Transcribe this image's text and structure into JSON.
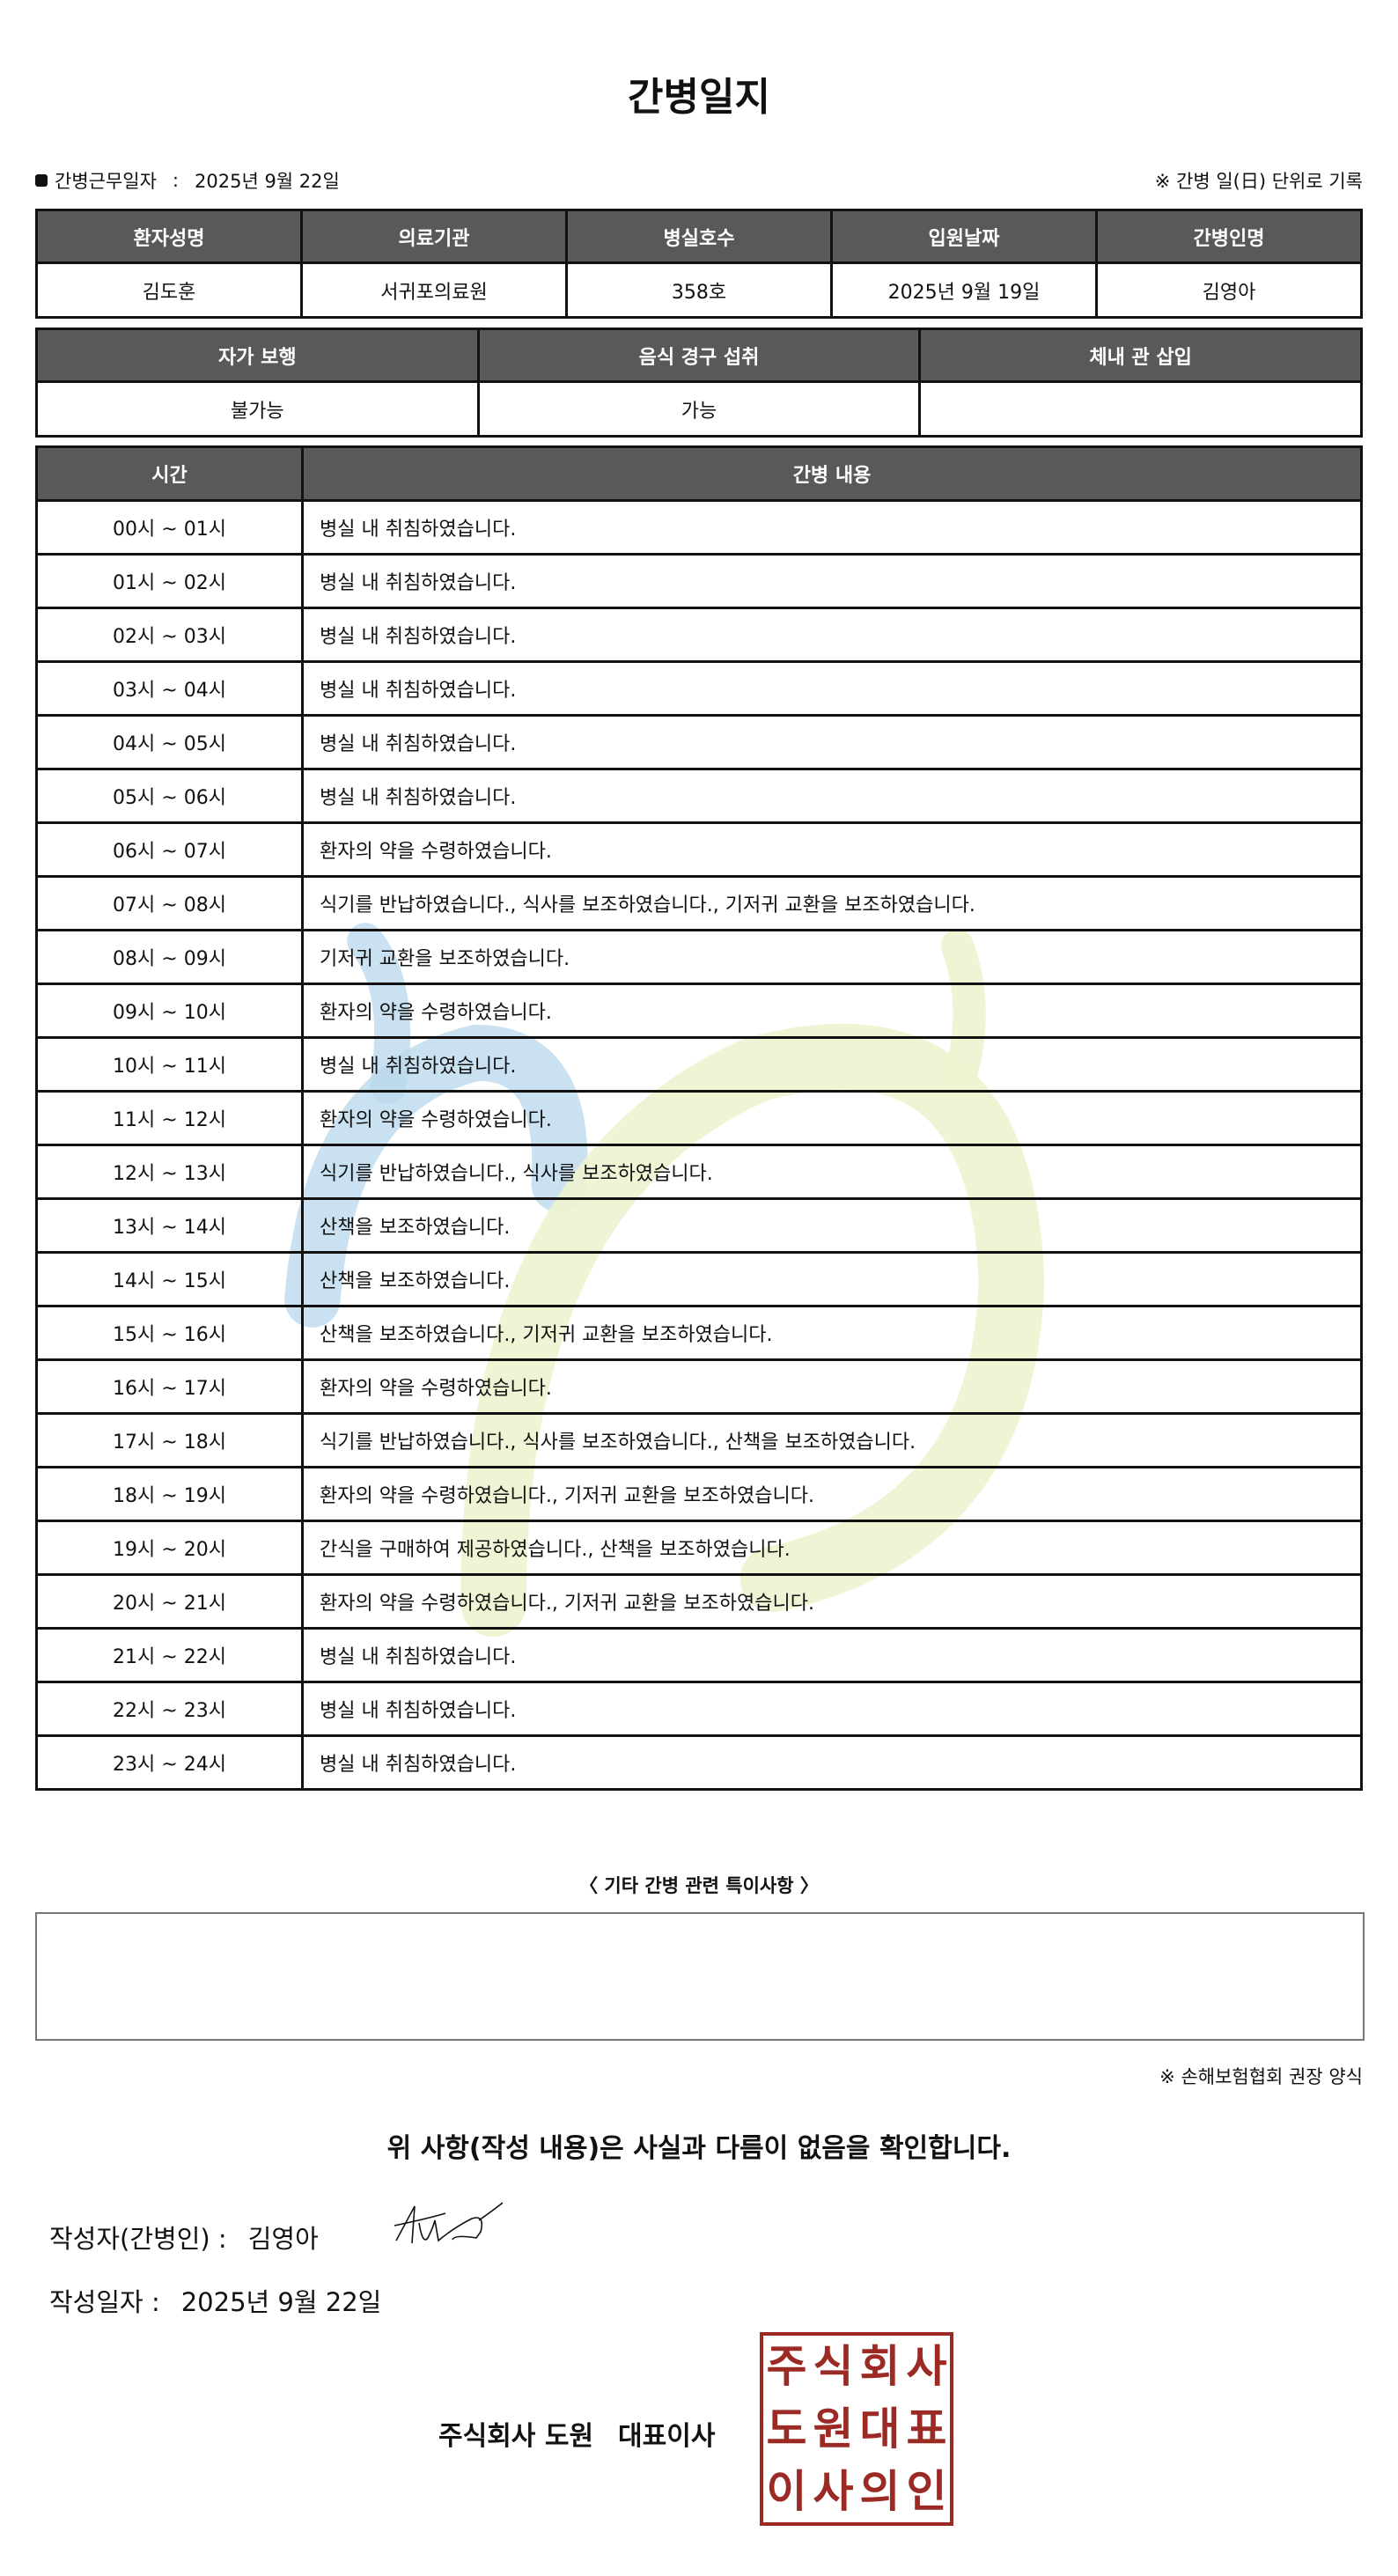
{
  "title": "간병일지",
  "work_date": {
    "label": "간병근무일자",
    "separator": ":",
    "value": "2025년 9월 22일"
  },
  "record_note": "※ 간병 일(日) 단위로 기록",
  "patient_table": {
    "headers": [
      "환자성명",
      "의료기관",
      "병실호수",
      "입원날짜",
      "간병인명"
    ],
    "values": [
      "김도훈",
      "서귀포의료원",
      "358호",
      "2025년 9월 19일",
      "김영아"
    ]
  },
  "status_table": {
    "headers": [
      "자가 보행",
      "음식 경구 섭취",
      "체내 관 삽입"
    ],
    "values": [
      "불가능",
      "가능",
      ""
    ]
  },
  "care_table": {
    "headers": [
      "시간",
      "간병 내용"
    ],
    "rows": [
      {
        "time": "00시 ~ 01시",
        "content": "병실 내 취침하였습니다."
      },
      {
        "time": "01시 ~ 02시",
        "content": "병실 내 취침하였습니다."
      },
      {
        "time": "02시 ~ 03시",
        "content": "병실 내 취침하였습니다."
      },
      {
        "time": "03시 ~ 04시",
        "content": "병실 내 취침하였습니다."
      },
      {
        "time": "04시 ~ 05시",
        "content": "병실 내 취침하였습니다."
      },
      {
        "time": "05시 ~ 06시",
        "content": "병실 내 취침하였습니다."
      },
      {
        "time": "06시 ~ 07시",
        "content": "환자의 약을 수령하였습니다."
      },
      {
        "time": "07시 ~ 08시",
        "content": "식기를 반납하였습니다., 식사를 보조하였습니다., 기저귀 교환을 보조하였습니다."
      },
      {
        "time": "08시 ~ 09시",
        "content": "기저귀 교환을 보조하였습니다."
      },
      {
        "time": "09시 ~ 10시",
        "content": "환자의 약을 수령하였습니다."
      },
      {
        "time": "10시 ~ 11시",
        "content": "병실 내 취침하였습니다."
      },
      {
        "time": "11시 ~ 12시",
        "content": "환자의 약을 수령하였습니다."
      },
      {
        "time": "12시 ~ 13시",
        "content": "식기를 반납하였습니다., 식사를 보조하였습니다."
      },
      {
        "time": "13시 ~ 14시",
        "content": "산책을 보조하였습니다."
      },
      {
        "time": "14시 ~ 15시",
        "content": "산책을 보조하였습니다."
      },
      {
        "time": "15시 ~ 16시",
        "content": "산책을 보조하였습니다., 기저귀 교환을 보조하였습니다."
      },
      {
        "time": "16시 ~ 17시",
        "content": "환자의 약을 수령하였습니다."
      },
      {
        "time": "17시 ~ 18시",
        "content": "식기를 반납하였습니다., 식사를 보조하였습니다., 산책을 보조하였습니다."
      },
      {
        "time": "18시 ~ 19시",
        "content": "환자의 약을 수령하였습니다., 기저귀 교환을 보조하였습니다."
      },
      {
        "time": "19시 ~ 20시",
        "content": "간식을 구매하여 제공하였습니다., 산책을 보조하였습니다."
      },
      {
        "time": "20시 ~ 21시",
        "content": "환자의 약을 수령하였습니다., 기저귀 교환을 보조하였습니다."
      },
      {
        "time": "21시 ~ 22시",
        "content": "병실 내 취침하였습니다."
      },
      {
        "time": "22시 ~ 23시",
        "content": "병실 내 취침하였습니다."
      },
      {
        "time": "23시 ~ 24시",
        "content": "병실 내 취침하였습니다."
      }
    ]
  },
  "notes": {
    "title": "〈 기타 간병 관련 특이사항 〉",
    "content": ""
  },
  "association_note": "※ 손해보험협회 권장 양식",
  "confirmation": "위 사항(작성 내용)은 사실과 다름이 없음을 확인합니다.",
  "writer": {
    "label": "작성자(간병인) :",
    "name": "김영아"
  },
  "written_date": {
    "label": "작성일자 :",
    "value": "2025년 9월 22일"
  },
  "company": {
    "name": "주식회사 도원",
    "title": "대표이사"
  },
  "seal": {
    "text": [
      "주",
      "식",
      "회",
      "사",
      "도",
      "원",
      "대",
      "표",
      "이",
      "사",
      "의",
      "인"
    ],
    "color": "#9b2a25"
  },
  "colors": {
    "header_bg": "#595959",
    "watermark_blue": "#bcd9ee",
    "watermark_green": "#eef3cf"
  }
}
